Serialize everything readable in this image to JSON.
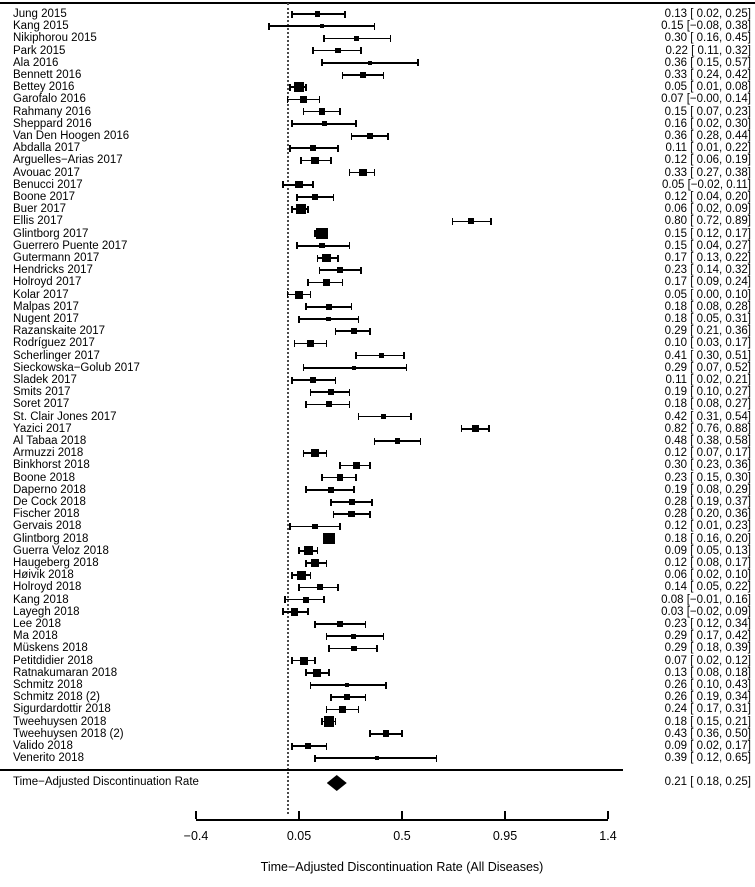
{
  "colors": {
    "text": "#000000",
    "lines": "#000000",
    "marker": "#000000",
    "background": "#ffffff",
    "reference_line": "#4a4a4a"
  },
  "chart_data": {
    "type": "forest",
    "xlabel": "Time−Adjusted Discontinuation Rate (All Diseases)",
    "xlim": [
      -0.4,
      1.4
    ],
    "x_ticks": [
      -0.4,
      0.05,
      0.5,
      0.95,
      1.4
    ],
    "x_tick_labels": [
      "−0.4",
      "0.05",
      "0.5",
      "0.95",
      "1.4"
    ],
    "reference_value": 0,
    "grid": false,
    "studies": [
      {
        "name": "Jung 2015",
        "est": 0.13,
        "lo": 0.02,
        "hi": 0.25,
        "label": "0.13 [ 0.02, 0.25]"
      },
      {
        "name": "Kang 2015",
        "est": 0.15,
        "lo": -0.08,
        "hi": 0.38,
        "label": "0.15 [−0.08, 0.38]"
      },
      {
        "name": "Nikiphorou 2015",
        "est": 0.3,
        "lo": 0.16,
        "hi": 0.45,
        "label": "0.30 [ 0.16, 0.45]"
      },
      {
        "name": "Park 2015",
        "est": 0.22,
        "lo": 0.11,
        "hi": 0.32,
        "label": "0.22 [ 0.11, 0.32]"
      },
      {
        "name": "Ala 2016",
        "est": 0.36,
        "lo": 0.15,
        "hi": 0.57,
        "label": "0.36 [ 0.15, 0.57]"
      },
      {
        "name": "Bennett 2016",
        "est": 0.33,
        "lo": 0.24,
        "hi": 0.42,
        "label": "0.33 [ 0.24, 0.42]"
      },
      {
        "name": "Bettey 2016",
        "est": 0.05,
        "lo": 0.01,
        "hi": 0.08,
        "label": "0.05 [ 0.01, 0.08]"
      },
      {
        "name": "Garofalo 2016",
        "est": 0.07,
        "lo": -0.001,
        "hi": 0.14,
        "label": "0.07 [−0.00, 0.14]"
      },
      {
        "name": "Rahmany 2016",
        "est": 0.15,
        "lo": 0.07,
        "hi": 0.23,
        "label": "0.15 [ 0.07, 0.23]"
      },
      {
        "name": "Sheppard 2016",
        "est": 0.16,
        "lo": 0.02,
        "hi": 0.3,
        "label": "0.16 [ 0.02, 0.30]"
      },
      {
        "name": "Van Den Hoogen 2016",
        "est": 0.36,
        "lo": 0.28,
        "hi": 0.44,
        "label": "0.36 [ 0.28, 0.44]"
      },
      {
        "name": "Abdalla 2017",
        "est": 0.11,
        "lo": 0.01,
        "hi": 0.22,
        "label": "0.11 [ 0.01, 0.22]"
      },
      {
        "name": "Arguelles−Arias 2017",
        "est": 0.12,
        "lo": 0.06,
        "hi": 0.19,
        "label": "0.12 [ 0.06, 0.19]"
      },
      {
        "name": "Avouac 2017",
        "est": 0.33,
        "lo": 0.27,
        "hi": 0.38,
        "label": "0.33 [ 0.27, 0.38]"
      },
      {
        "name": "Benucci 2017",
        "est": 0.05,
        "lo": -0.02,
        "hi": 0.11,
        "label": "0.05 [−0.02, 0.11]"
      },
      {
        "name": "Boone 2017",
        "est": 0.12,
        "lo": 0.04,
        "hi": 0.2,
        "label": "0.12 [ 0.04, 0.20]"
      },
      {
        "name": "Buer 2017",
        "est": 0.06,
        "lo": 0.02,
        "hi": 0.09,
        "label": "0.06 [ 0.02, 0.09]"
      },
      {
        "name": "Ellis 2017",
        "est": 0.8,
        "lo": 0.72,
        "hi": 0.89,
        "label": "0.80 [ 0.72, 0.89]"
      },
      {
        "name": "Glintborg 2017",
        "est": 0.15,
        "lo": 0.12,
        "hi": 0.17,
        "label": "0.15 [ 0.12, 0.17]"
      },
      {
        "name": "Guerrero Puente 2017",
        "est": 0.15,
        "lo": 0.04,
        "hi": 0.27,
        "label": "0.15 [ 0.04, 0.27]"
      },
      {
        "name": "Gutermann 2017",
        "est": 0.17,
        "lo": 0.13,
        "hi": 0.22,
        "label": "0.17 [ 0.13, 0.22]"
      },
      {
        "name": "Hendricks 2017",
        "est": 0.23,
        "lo": 0.14,
        "hi": 0.32,
        "label": "0.23 [ 0.14, 0.32]"
      },
      {
        "name": "Holroyd 2017",
        "est": 0.17,
        "lo": 0.09,
        "hi": 0.24,
        "label": "0.17 [ 0.09, 0.24]"
      },
      {
        "name": "Kolar 2017",
        "est": 0.05,
        "lo": 0.0,
        "hi": 0.1,
        "label": "0.05 [ 0.00, 0.10]"
      },
      {
        "name": "Malpas 2017",
        "est": 0.18,
        "lo": 0.08,
        "hi": 0.28,
        "label": "0.18 [ 0.08, 0.28]"
      },
      {
        "name": "Nugent 2017",
        "est": 0.18,
        "lo": 0.05,
        "hi": 0.31,
        "label": "0.18 [ 0.05, 0.31]"
      },
      {
        "name": "Razanskaite 2017",
        "est": 0.29,
        "lo": 0.21,
        "hi": 0.36,
        "label": "0.29 [ 0.21, 0.36]"
      },
      {
        "name": "Rodríguez 2017",
        "est": 0.1,
        "lo": 0.03,
        "hi": 0.17,
        "label": "0.10 [ 0.03, 0.17]"
      },
      {
        "name": "Scherlinger 2017",
        "est": 0.41,
        "lo": 0.3,
        "hi": 0.51,
        "label": "0.41 [ 0.30, 0.51]"
      },
      {
        "name": "Sieckowska−Golub 2017",
        "est": 0.29,
        "lo": 0.07,
        "hi": 0.52,
        "label": "0.29 [ 0.07, 0.52]"
      },
      {
        "name": "Sladek 2017",
        "est": 0.11,
        "lo": 0.02,
        "hi": 0.21,
        "label": "0.11 [ 0.02, 0.21]"
      },
      {
        "name": "Smits 2017",
        "est": 0.19,
        "lo": 0.1,
        "hi": 0.27,
        "label": "0.19 [ 0.10, 0.27]"
      },
      {
        "name": "Soret 2017",
        "est": 0.18,
        "lo": 0.08,
        "hi": 0.27,
        "label": "0.18 [ 0.08, 0.27]"
      },
      {
        "name": "St. Clair Jones 2017",
        "est": 0.42,
        "lo": 0.31,
        "hi": 0.54,
        "label": "0.42 [ 0.31, 0.54]"
      },
      {
        "name": "Yazici 2017",
        "est": 0.82,
        "lo": 0.76,
        "hi": 0.88,
        "label": "0.82 [ 0.76, 0.88]"
      },
      {
        "name": "Al Tabaa 2018",
        "est": 0.48,
        "lo": 0.38,
        "hi": 0.58,
        "label": "0.48 [ 0.38, 0.58]"
      },
      {
        "name": "Armuzzi 2018",
        "est": 0.12,
        "lo": 0.07,
        "hi": 0.17,
        "label": "0.12 [ 0.07, 0.17]"
      },
      {
        "name": "Binkhorst 2018",
        "est": 0.3,
        "lo": 0.23,
        "hi": 0.36,
        "label": "0.30 [ 0.23, 0.36]"
      },
      {
        "name": "Boone 2018",
        "est": 0.23,
        "lo": 0.15,
        "hi": 0.3,
        "label": "0.23 [ 0.15, 0.30]"
      },
      {
        "name": "Daperno 2018",
        "est": 0.19,
        "lo": 0.08,
        "hi": 0.29,
        "label": "0.19 [ 0.08, 0.29]"
      },
      {
        "name": "De Cock 2018",
        "est": 0.28,
        "lo": 0.19,
        "hi": 0.37,
        "label": "0.28 [ 0.19, 0.37]"
      },
      {
        "name": "Fischer 2018",
        "est": 0.28,
        "lo": 0.2,
        "hi": 0.36,
        "label": "0.28 [ 0.20, 0.36]"
      },
      {
        "name": "Gervais 2018",
        "est": 0.12,
        "lo": 0.01,
        "hi": 0.23,
        "label": "0.12 [ 0.01, 0.23]"
      },
      {
        "name": "Glintborg 2018",
        "est": 0.18,
        "lo": 0.16,
        "hi": 0.2,
        "label": "0.18 [ 0.16, 0.20]"
      },
      {
        "name": "Guerra Veloz 2018",
        "est": 0.09,
        "lo": 0.05,
        "hi": 0.13,
        "label": "0.09 [ 0.05, 0.13]"
      },
      {
        "name": "Haugeberg 2018",
        "est": 0.12,
        "lo": 0.08,
        "hi": 0.17,
        "label": "0.12 [ 0.08, 0.17]"
      },
      {
        "name": "Høivik 2018",
        "est": 0.06,
        "lo": 0.02,
        "hi": 0.1,
        "label": "0.06 [ 0.02, 0.10]"
      },
      {
        "name": "Holroyd 2018",
        "est": 0.14,
        "lo": 0.05,
        "hi": 0.22,
        "label": "0.14 [ 0.05, 0.22]"
      },
      {
        "name": "Kang 2018",
        "est": 0.08,
        "lo": -0.01,
        "hi": 0.16,
        "label": "0.08 [−0.01, 0.16]"
      },
      {
        "name": "Layegh 2018",
        "est": 0.03,
        "lo": -0.02,
        "hi": 0.09,
        "label": "0.03 [−0.02, 0.09]"
      },
      {
        "name": "Lee 2018",
        "est": 0.23,
        "lo": 0.12,
        "hi": 0.34,
        "label": "0.23 [ 0.12, 0.34]"
      },
      {
        "name": "Ma 2018",
        "est": 0.29,
        "lo": 0.17,
        "hi": 0.42,
        "label": "0.29 [ 0.17, 0.42]"
      },
      {
        "name": "Müskens 2018",
        "est": 0.29,
        "lo": 0.18,
        "hi": 0.39,
        "label": "0.29 [ 0.18, 0.39]"
      },
      {
        "name": "Petitdidier 2018",
        "est": 0.07,
        "lo": 0.02,
        "hi": 0.12,
        "label": "0.07 [ 0.02, 0.12]"
      },
      {
        "name": "Ratnakumaran 2018",
        "est": 0.13,
        "lo": 0.08,
        "hi": 0.18,
        "label": "0.13 [ 0.08, 0.18]"
      },
      {
        "name": "Schmitz 2018",
        "est": 0.26,
        "lo": 0.1,
        "hi": 0.43,
        "label": "0.26 [ 0.10, 0.43]"
      },
      {
        "name": "Schmitz 2018 (2)",
        "est": 0.26,
        "lo": 0.19,
        "hi": 0.34,
        "label": "0.26 [ 0.19, 0.34]"
      },
      {
        "name": "Sigurdardottir 2018",
        "est": 0.24,
        "lo": 0.17,
        "hi": 0.31,
        "label": "0.24 [ 0.17, 0.31]"
      },
      {
        "name": "Tweehuysen 2018",
        "est": 0.18,
        "lo": 0.15,
        "hi": 0.21,
        "label": "0.18 [ 0.15, 0.21]"
      },
      {
        "name": "Tweehuysen 2018 (2)",
        "est": 0.43,
        "lo": 0.36,
        "hi": 0.5,
        "label": "0.43 [ 0.36, 0.50]"
      },
      {
        "name": "Valido 2018",
        "est": 0.09,
        "lo": 0.02,
        "hi": 0.17,
        "label": "0.09 [ 0.02, 0.17]"
      },
      {
        "name": "Venerito 2018",
        "est": 0.39,
        "lo": 0.12,
        "hi": 0.65,
        "label": "0.39 [ 0.12, 0.65]"
      }
    ],
    "summary": {
      "name": "Time−Adjusted Discontinuation Rate",
      "est": 0.21,
      "lo": 0.18,
      "hi": 0.25,
      "label": "0.21 [ 0.18, 0.25]"
    },
    "legend_position": "none"
  }
}
